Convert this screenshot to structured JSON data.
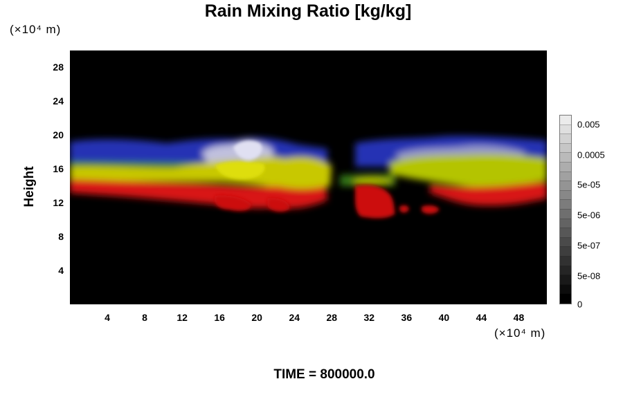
{
  "chart_data": {
    "type": "heatmap",
    "title": "Rain Mixing Ratio [kg/kg]",
    "xlabel": "",
    "ylabel": "Height",
    "x_unit": "(×10⁴ m)",
    "y_unit": "(×10⁴ m)",
    "xlim": [
      0,
      51
    ],
    "ylim": [
      0,
      30
    ],
    "x_ticks": [
      "4",
      "8",
      "12",
      "16",
      "20",
      "24",
      "28",
      "32",
      "36",
      "40",
      "44",
      "48"
    ],
    "y_ticks": [
      "4",
      "8",
      "12",
      "16",
      "20",
      "24",
      "28"
    ],
    "colorbar": {
      "scale": "log",
      "labels": [
        "0.005",
        "0.0005",
        "5e-05",
        "5e-06",
        "5e-07",
        "5e-08",
        "0"
      ]
    },
    "footer": "TIME = 800000.0",
    "layers": [
      {
        "color": "#2233cc",
        "y_range": [
          17,
          19.5
        ],
        "x_ranges": [
          [
            0,
            28
          ],
          [
            31,
            51
          ]
        ]
      },
      {
        "color": "#c8c800",
        "y_range": [
          14.5,
          17.5
        ],
        "x_ranges": [
          [
            0,
            28
          ],
          [
            34,
            51
          ]
        ]
      },
      {
        "color": "#dd1111",
        "y_range": [
          10.5,
          15
        ],
        "x_ranges": [
          [
            0,
            27
          ],
          [
            30,
            51
          ]
        ]
      }
    ]
  }
}
